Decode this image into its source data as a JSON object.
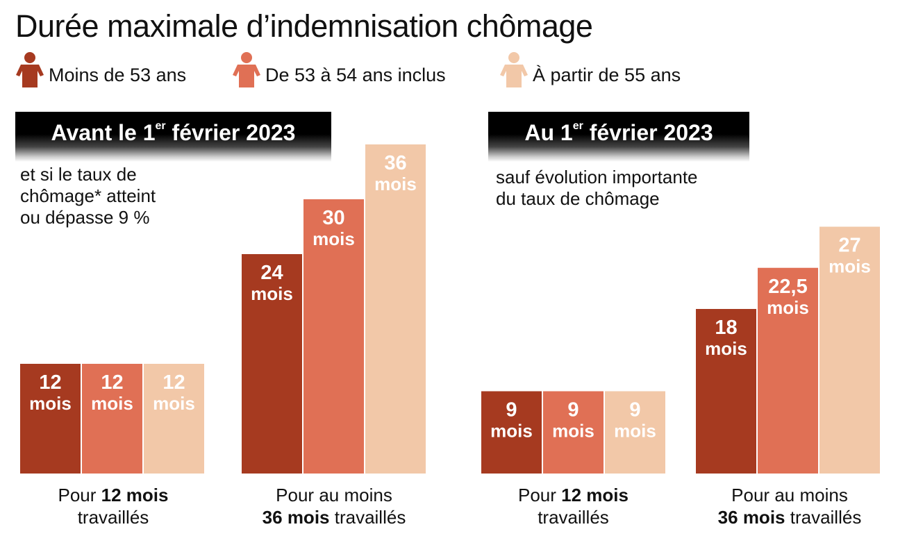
{
  "title": "Durée maximale d’indemnisation chômage",
  "legend": [
    {
      "label": "Moins de 53 ans",
      "color": "#a63a20",
      "icon": "person-icon"
    },
    {
      "label": "De 53 à 54 ans inclus",
      "color": "#e07055",
      "icon": "person-icon"
    },
    {
      "label": "À partir de 55 ans",
      "color": "#f2c8a8",
      "icon": "person-icon"
    }
  ],
  "panels": [
    {
      "header": {
        "prefix": "Avant le 1",
        "sup": "er",
        "suffix": " février 2023"
      },
      "note": [
        "et si le taux de",
        "chômage* atteint",
        "ou dépasse 9 %"
      ]
    },
    {
      "header": {
        "prefix": "Au 1",
        "sup": "er",
        "suffix": " février 2023"
      },
      "note": [
        "sauf évolution importante",
        "du taux de chômage"
      ]
    }
  ],
  "group_labels": [
    {
      "line1_pre": "Pour ",
      "line1_bold": "12 mois",
      "line2_bold": "",
      "line2_post": "travaillés"
    },
    {
      "line1_pre": "Pour au moins",
      "line1_bold": "",
      "line2_bold": "36 mois",
      "line2_post": " travaillés"
    },
    {
      "line1_pre": "Pour ",
      "line1_bold": "12 mois",
      "line2_bold": "",
      "line2_post": "travaillés"
    },
    {
      "line1_pre": "Pour au moins",
      "line1_bold": "",
      "line2_bold": "36 mois",
      "line2_post": " travaillés"
    }
  ],
  "chart_data": {
    "type": "bar",
    "title": "Durée maximale d’indemnisation chômage",
    "unit": "mois",
    "xlabel": "",
    "ylabel": "",
    "ylim": [
      0,
      36
    ],
    "grid": false,
    "legend_position": "top-left",
    "series_names": [
      "Moins de 53 ans",
      "De 53 à 54 ans inclus",
      "À partir de 55 ans"
    ],
    "colors": [
      "#a63a20",
      "#e07055",
      "#f2c8a8"
    ],
    "panels": [
      {
        "name": "Avant le 1er février 2023",
        "categories": [
          "Pour 12 mois travaillés",
          "Pour au moins 36 mois travaillés"
        ],
        "series": [
          {
            "name": "Moins de 53 ans",
            "values": [
              12,
              24
            ],
            "labels": [
              "12",
              "24"
            ]
          },
          {
            "name": "De 53 à 54 ans inclus",
            "values": [
              12,
              30
            ],
            "labels": [
              "12",
              "30"
            ]
          },
          {
            "name": "À partir de 55 ans",
            "values": [
              12,
              36
            ],
            "labels": [
              "12",
              "36"
            ]
          }
        ]
      },
      {
        "name": "Au 1er février 2023",
        "categories": [
          "Pour 12 mois travaillés",
          "Pour au moins 36 mois travaillés"
        ],
        "series": [
          {
            "name": "Moins de 53 ans",
            "values": [
              9,
              18
            ],
            "labels": [
              "9",
              "18"
            ]
          },
          {
            "name": "De 53 à 54 ans inclus",
            "values": [
              9,
              22.5
            ],
            "labels": [
              "9",
              "22,5"
            ]
          },
          {
            "name": "À partir de 55 ans",
            "values": [
              9,
              27
            ],
            "labels": [
              "9",
              "27"
            ]
          }
        ]
      }
    ]
  }
}
